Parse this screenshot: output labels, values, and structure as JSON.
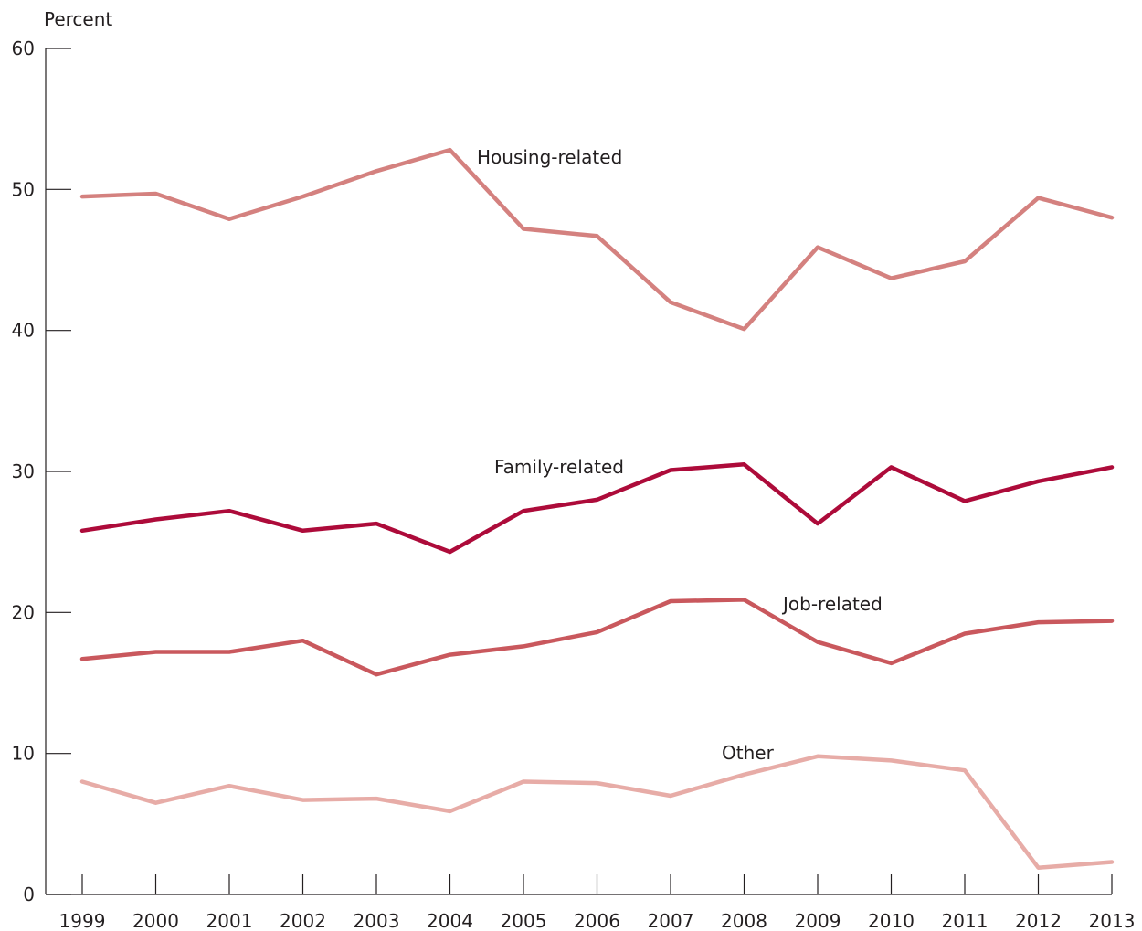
{
  "chart_data": {
    "type": "line",
    "title": "",
    "ylabel": "Percent",
    "xlabel": "",
    "ylim": [
      0,
      60
    ],
    "yticks": [
      0,
      10,
      20,
      30,
      40,
      50,
      60
    ],
    "grid": false,
    "x": [
      "1999",
      "2000",
      "2001",
      "2002",
      "2003",
      "2004",
      "2005",
      "2006",
      "2007",
      "2008",
      "2009",
      "2010",
      "2011",
      "2012",
      "2013"
    ],
    "series": [
      {
        "name": "Housing-related",
        "color": "#d4817f",
        "values": [
          49.5,
          49.7,
          47.9,
          49.5,
          51.3,
          52.8,
          47.2,
          46.7,
          42.0,
          40.1,
          45.9,
          43.7,
          44.9,
          49.4,
          48.0
        ]
      },
      {
        "name": "Family-related",
        "color": "#ad0b3a",
        "values": [
          25.8,
          26.6,
          27.2,
          25.8,
          26.3,
          24.3,
          27.2,
          28.0,
          30.1,
          30.5,
          26.3,
          30.3,
          27.9,
          29.3,
          30.3
        ]
      },
      {
        "name": "Job-related",
        "color": "#c9585d",
        "values": [
          16.7,
          17.2,
          17.2,
          18.0,
          15.6,
          17.0,
          17.6,
          18.6,
          20.8,
          20.9,
          17.9,
          16.4,
          18.5,
          19.3,
          19.4
        ]
      },
      {
        "name": "Other",
        "color": "#e7aca7",
        "values": [
          8.0,
          6.5,
          7.7,
          6.7,
          6.8,
          5.9,
          8.0,
          7.9,
          7.0,
          8.5,
          9.8,
          9.5,
          8.8,
          1.9,
          2.3
        ]
      }
    ]
  }
}
